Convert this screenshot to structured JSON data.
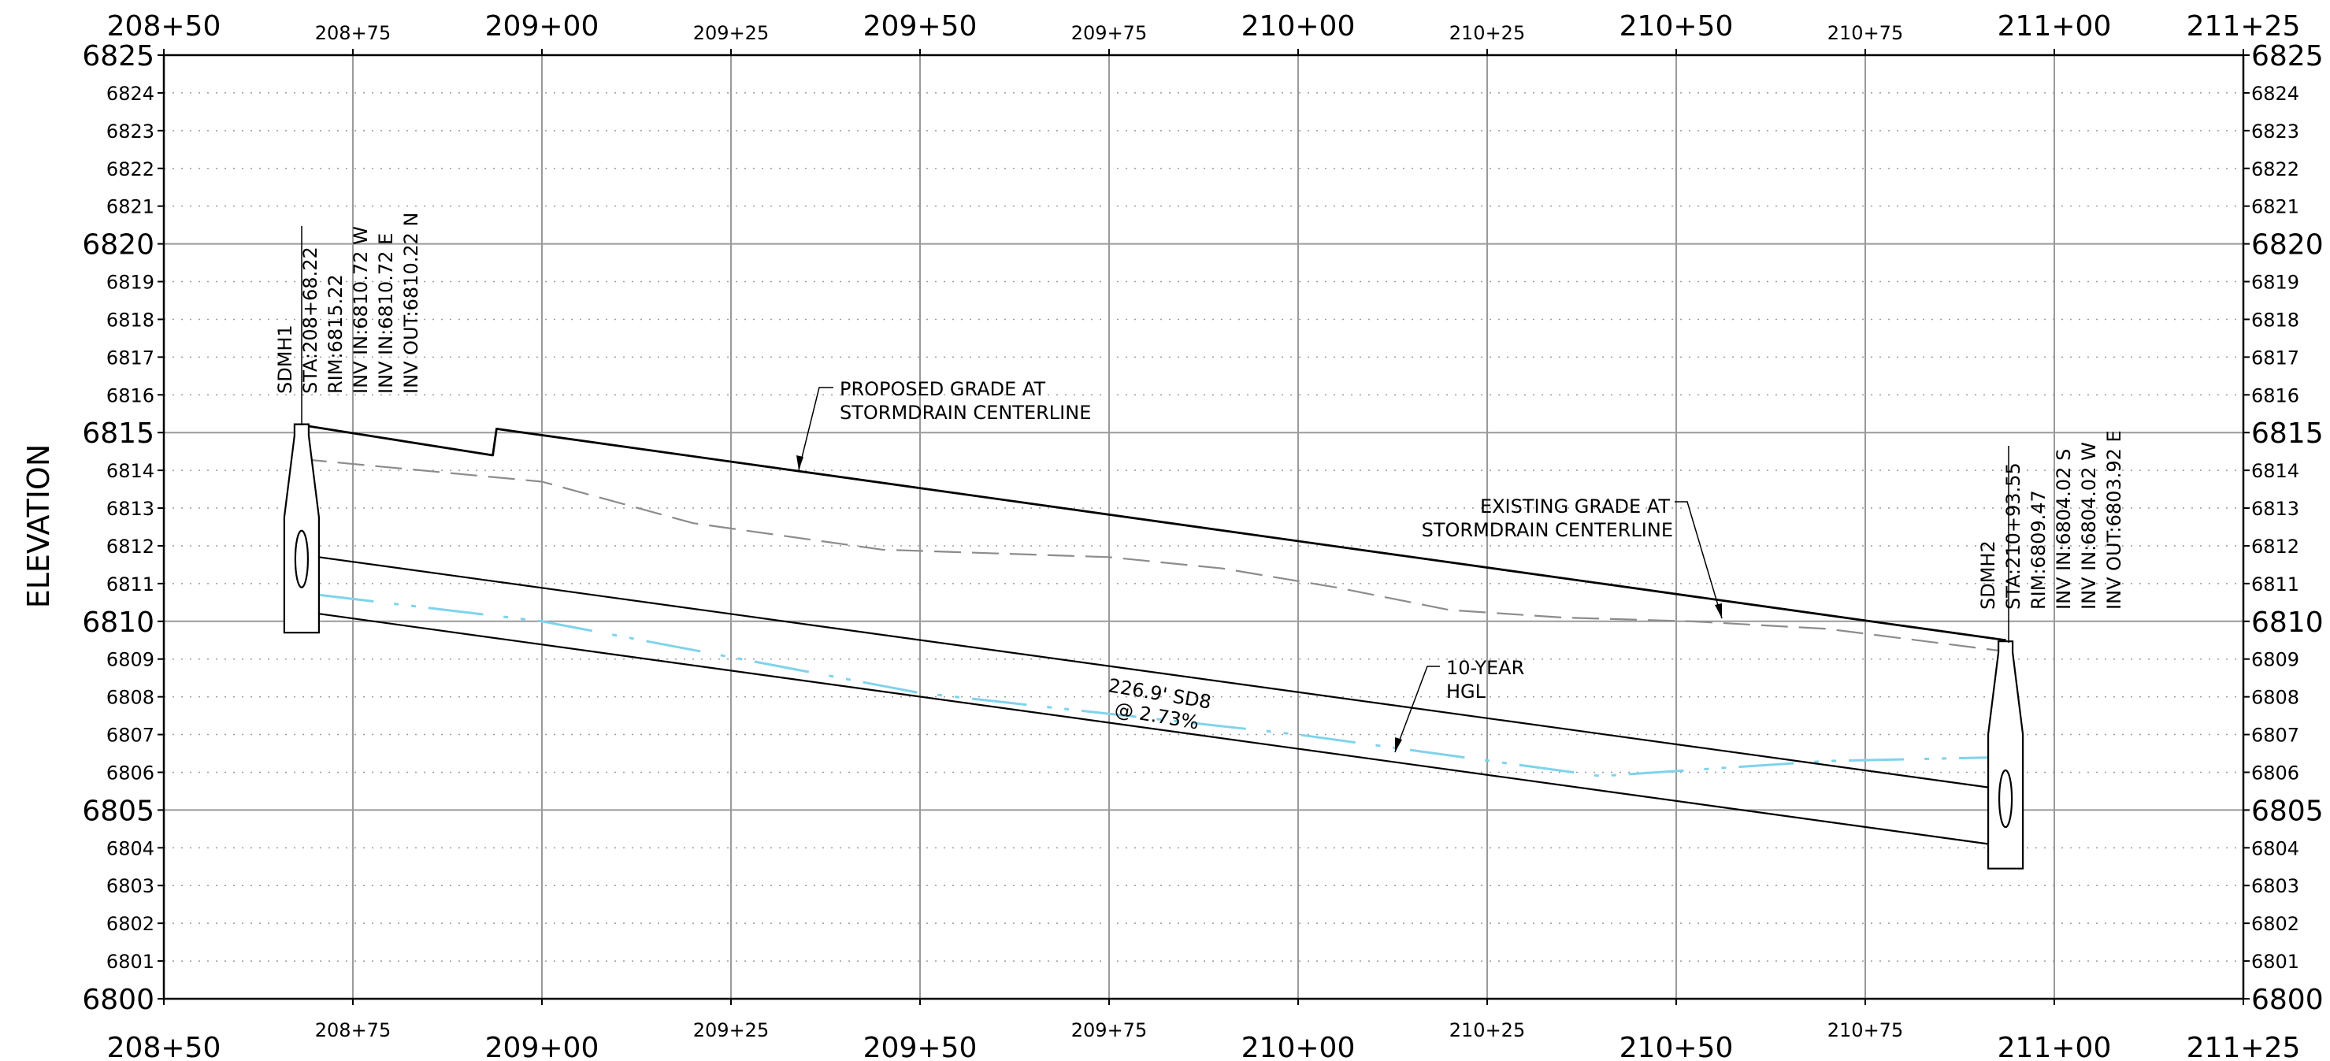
{
  "chart_data": {
    "type": "line",
    "ylabel": "ELEVATION",
    "xlim": [
      20850,
      21125
    ],
    "ylim": [
      6800,
      6825
    ],
    "x_ticks": [
      {
        "v": 20850,
        "text": "208+50",
        "major": true
      },
      {
        "v": 20875,
        "text": "208+75",
        "major": false
      },
      {
        "v": 20900,
        "text": "209+00",
        "major": true
      },
      {
        "v": 20925,
        "text": "209+25",
        "major": false
      },
      {
        "v": 20950,
        "text": "209+50",
        "major": true
      },
      {
        "v": 20975,
        "text": "209+75",
        "major": false
      },
      {
        "v": 21000,
        "text": "210+00",
        "major": true
      },
      {
        "v": 21025,
        "text": "210+25",
        "major": false
      },
      {
        "v": 21050,
        "text": "210+50",
        "major": true
      },
      {
        "v": 21075,
        "text": "210+75",
        "major": false
      },
      {
        "v": 21100,
        "text": "211+00",
        "major": true
      },
      {
        "v": 21125,
        "text": "211+25",
        "major": true
      }
    ],
    "y_ticks": [
      {
        "v": 6800,
        "text": "6800",
        "major": true
      },
      {
        "v": 6801,
        "text": "6801",
        "major": false
      },
      {
        "v": 6802,
        "text": "6802",
        "major": false
      },
      {
        "v": 6803,
        "text": "6803",
        "major": false
      },
      {
        "v": 6804,
        "text": "6804",
        "major": false
      },
      {
        "v": 6805,
        "text": "6805",
        "major": true
      },
      {
        "v": 6806,
        "text": "6806",
        "major": false
      },
      {
        "v": 6807,
        "text": "6807",
        "major": false
      },
      {
        "v": 6808,
        "text": "6808",
        "major": false
      },
      {
        "v": 6809,
        "text": "6809",
        "major": false
      },
      {
        "v": 6810,
        "text": "6810",
        "major": true
      },
      {
        "v": 6811,
        "text": "6811",
        "major": false
      },
      {
        "v": 6812,
        "text": "6812",
        "major": false
      },
      {
        "v": 6813,
        "text": "6813",
        "major": false
      },
      {
        "v": 6814,
        "text": "6814",
        "major": false
      },
      {
        "v": 6815,
        "text": "6815",
        "major": true
      },
      {
        "v": 6816,
        "text": "6816",
        "major": false
      },
      {
        "v": 6817,
        "text": "6817",
        "major": false
      },
      {
        "v": 6818,
        "text": "6818",
        "major": false
      },
      {
        "v": 6819,
        "text": "6819",
        "major": false
      },
      {
        "v": 6820,
        "text": "6820",
        "major": true
      },
      {
        "v": 6821,
        "text": "6821",
        "major": false
      },
      {
        "v": 6822,
        "text": "6822",
        "major": false
      },
      {
        "v": 6823,
        "text": "6823",
        "major": false
      },
      {
        "v": 6824,
        "text": "6824",
        "major": false
      },
      {
        "v": 6825,
        "text": "6825",
        "major": true
      }
    ],
    "series": [
      {
        "name": "PROPOSED GRADE AT STORMDRAIN CENTERLINE",
        "x": [
          20868.2,
          20893.5,
          20894.0,
          21093.6
        ],
        "y": [
          6815.2,
          6814.4,
          6815.1,
          6809.5
        ]
      },
      {
        "name": "EXISTING GRADE AT STORMDRAIN CENTERLINE",
        "x": [
          20868,
          20900,
          20920,
          20945,
          20975,
          20990,
          21005,
          21020,
          21035,
          21052,
          21070,
          21093.6
        ],
        "y": [
          6814.3,
          6813.7,
          6812.6,
          6811.9,
          6811.7,
          6811.4,
          6810.9,
          6810.3,
          6810.1,
          6810.0,
          6809.8,
          6809.2
        ]
      },
      {
        "name": "10-YEAR HGL",
        "x": [
          20870.5,
          20900,
          20950,
          21000,
          21040,
          21070,
          21093.6
        ],
        "y": [
          6810.7,
          6810.0,
          6808.1,
          6807.0,
          6805.9,
          6806.3,
          6806.4
        ]
      },
      {
        "name": "PIPE CROWN",
        "x": [
          20870.5,
          21091.3
        ],
        "y": [
          6811.7,
          6805.6
        ]
      },
      {
        "name": "PIPE INVERT",
        "x": [
          20870.5,
          21091.3
        ],
        "y": [
          6810.2,
          6804.1
        ]
      }
    ],
    "structures": [
      {
        "name": "SDMH1",
        "station": 20868.22,
        "label_lines": [
          "SDMH1",
          "STA:208+68.22",
          "RIM:6815.22",
          "INV IN:6810.72 W",
          "INV IN:6810.72 E",
          "INV OUT:6810.22 N"
        ]
      },
      {
        "name": "SDMH2",
        "station": 21093.55,
        "label_lines": [
          "SDMH2",
          "STA:210+93.55",
          "RIM:6809.47",
          "INV IN:6804.02 S",
          "INV IN:6804.02 W",
          "INV OUT:6803.92 E"
        ]
      }
    ],
    "annotations": {
      "proposed_grade": [
        "PROPOSED GRADE AT",
        "STORMDRAIN CENTERLINE"
      ],
      "existing_grade": [
        "EXISTING GRADE AT",
        "STORMDRAIN CENTERLINE"
      ],
      "hgl": [
        "10-YEAR",
        "HGL"
      ],
      "pipe": [
        "226.9' SD8",
        "@ 2.73%"
      ]
    },
    "colors": {
      "hgl": "#7fd3ec",
      "existing": "#8c8c8c",
      "line": "#000000",
      "grid": "#9a9a9a"
    }
  }
}
